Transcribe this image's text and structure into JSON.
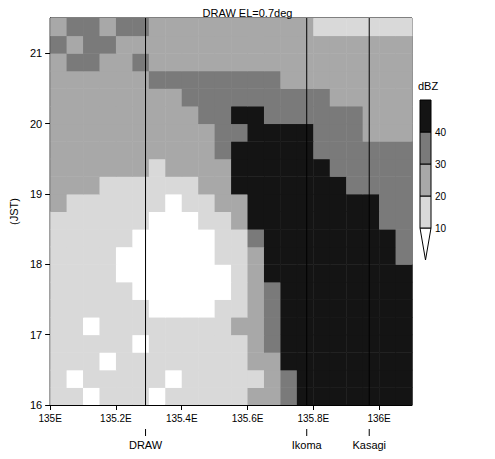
{
  "chart_data": {
    "type": "heatmap",
    "title": "DRAW EL=0.7deg",
    "ylabel": "(JST)",
    "xlim": [
      135,
      136.1
    ],
    "xticks": [
      {
        "value": 135,
        "label": "135E"
      },
      {
        "value": 135.2,
        "label": "135.2E"
      },
      {
        "value": 135.4,
        "label": "135.4E"
      },
      {
        "value": 135.6,
        "label": "135.6E"
      },
      {
        "value": 135.8,
        "label": "135.8E"
      },
      {
        "value": 136,
        "label": "136E"
      }
    ],
    "ylim": [
      16,
      21.5
    ],
    "yticks": [
      16,
      17,
      18,
      19,
      20,
      21
    ],
    "cells": {
      "x": [
        135,
        135.05,
        135.1,
        135.15,
        135.2,
        135.25,
        135.3,
        135.35,
        135.4,
        135.45,
        135.5,
        135.55,
        135.6,
        135.65,
        135.7,
        135.75,
        135.8,
        135.85,
        135.9,
        135.95,
        136,
        136.05,
        136.1
      ],
      "y": [
        16,
        16.25,
        16.5,
        16.75,
        17,
        17.25,
        17.5,
        17.75,
        18,
        18.25,
        18.5,
        18.75,
        19,
        19.25,
        19.5,
        19.75,
        20,
        20.25,
        20.5,
        20.75,
        21,
        21.25,
        21.5
      ],
      "values": [
        [
          15,
          15,
          5,
          15,
          15,
          15,
          5,
          15,
          15,
          15,
          15,
          15,
          25,
          25,
          35,
          45,
          45,
          45,
          45,
          45,
          45,
          45
        ],
        [
          15,
          5,
          15,
          15,
          15,
          15,
          15,
          5,
          15,
          15,
          15,
          15,
          15,
          25,
          35,
          45,
          45,
          45,
          45,
          45,
          45,
          45
        ],
        [
          15,
          15,
          15,
          5,
          15,
          15,
          15,
          15,
          15,
          15,
          15,
          15,
          25,
          25,
          45,
          45,
          45,
          45,
          45,
          45,
          45,
          45
        ],
        [
          15,
          15,
          15,
          15,
          15,
          5,
          15,
          15,
          15,
          15,
          15,
          15,
          25,
          35,
          45,
          45,
          45,
          45,
          45,
          45,
          45,
          45
        ],
        [
          15,
          15,
          5,
          15,
          15,
          15,
          15,
          15,
          15,
          15,
          15,
          25,
          25,
          35,
          45,
          45,
          45,
          45,
          45,
          45,
          45,
          45
        ],
        [
          15,
          15,
          15,
          15,
          15,
          15,
          5,
          5,
          5,
          5,
          15,
          15,
          25,
          35,
          45,
          45,
          45,
          45,
          45,
          45,
          45,
          45
        ],
        [
          15,
          15,
          15,
          15,
          15,
          5,
          5,
          5,
          5,
          5,
          5,
          15,
          25,
          35,
          45,
          45,
          45,
          45,
          45,
          45,
          45,
          45
        ],
        [
          15,
          15,
          15,
          15,
          5,
          5,
          5,
          5,
          5,
          5,
          5,
          15,
          25,
          45,
          45,
          45,
          45,
          45,
          45,
          45,
          45,
          45
        ],
        [
          15,
          15,
          15,
          15,
          5,
          5,
          5,
          5,
          5,
          5,
          15,
          15,
          25,
          45,
          45,
          45,
          45,
          45,
          45,
          45,
          45,
          35
        ],
        [
          15,
          15,
          15,
          15,
          15,
          5,
          5,
          5,
          5,
          5,
          15,
          15,
          35,
          45,
          45,
          45,
          45,
          45,
          45,
          45,
          45,
          35
        ],
        [
          15,
          15,
          15,
          15,
          15,
          15,
          5,
          5,
          5,
          15,
          15,
          25,
          45,
          45,
          45,
          45,
          45,
          45,
          45,
          45,
          35,
          35
        ],
        [
          25,
          15,
          15,
          15,
          15,
          15,
          15,
          5,
          15,
          15,
          25,
          25,
          45,
          45,
          45,
          45,
          45,
          45,
          45,
          45,
          35,
          35
        ],
        [
          25,
          25,
          25,
          15,
          15,
          15,
          15,
          15,
          15,
          25,
          25,
          45,
          45,
          45,
          45,
          45,
          45,
          45,
          35,
          35,
          35,
          35
        ],
        [
          25,
          25,
          25,
          25,
          25,
          25,
          15,
          25,
          25,
          25,
          25,
          45,
          45,
          45,
          45,
          45,
          45,
          35,
          35,
          35,
          35,
          35
        ],
        [
          25,
          25,
          25,
          25,
          25,
          25,
          25,
          25,
          25,
          25,
          35,
          45,
          45,
          45,
          45,
          45,
          35,
          35,
          35,
          35,
          35,
          35
        ],
        [
          25,
          25,
          25,
          25,
          25,
          25,
          25,
          25,
          25,
          25,
          35,
          35,
          45,
          45,
          45,
          45,
          35,
          35,
          35,
          25,
          25,
          25
        ],
        [
          25,
          25,
          25,
          25,
          25,
          25,
          25,
          25,
          25,
          35,
          35,
          45,
          45,
          35,
          35,
          35,
          35,
          35,
          35,
          25,
          25,
          25
        ],
        [
          25,
          25,
          25,
          25,
          25,
          25,
          25,
          25,
          35,
          35,
          35,
          35,
          35,
          35,
          35,
          35,
          35,
          25,
          25,
          25,
          25,
          25
        ],
        [
          25,
          25,
          25,
          25,
          25,
          25,
          35,
          35,
          35,
          35,
          35,
          35,
          35,
          35,
          25,
          25,
          25,
          25,
          25,
          25,
          25,
          25
        ],
        [
          25,
          35,
          35,
          25,
          25,
          35,
          25,
          25,
          25,
          25,
          25,
          25,
          25,
          25,
          25,
          25,
          25,
          25,
          25,
          25,
          25,
          25
        ],
        [
          35,
          25,
          35,
          35,
          25,
          25,
          25,
          25,
          25,
          25,
          25,
          25,
          25,
          25,
          25,
          25,
          25,
          25,
          25,
          25,
          25,
          25
        ],
        [
          25,
          35,
          35,
          25,
          35,
          35,
          25,
          25,
          25,
          25,
          25,
          25,
          25,
          25,
          25,
          25,
          15,
          15,
          15,
          15,
          15,
          15
        ]
      ]
    },
    "colorbar": {
      "title": "dBZ",
      "range": [
        0,
        50
      ],
      "ticks": [
        10,
        20,
        30,
        40
      ],
      "colors": [
        "#ffffff",
        "#d9d9d9",
        "#a8a8a8",
        "#7a7a7a",
        "#141414"
      ]
    },
    "stations": [
      {
        "name": "DRAW",
        "x": 135.29
      },
      {
        "name": "Ikoma",
        "x": 135.78
      },
      {
        "name": "Kasagi",
        "x": 135.97
      }
    ]
  }
}
